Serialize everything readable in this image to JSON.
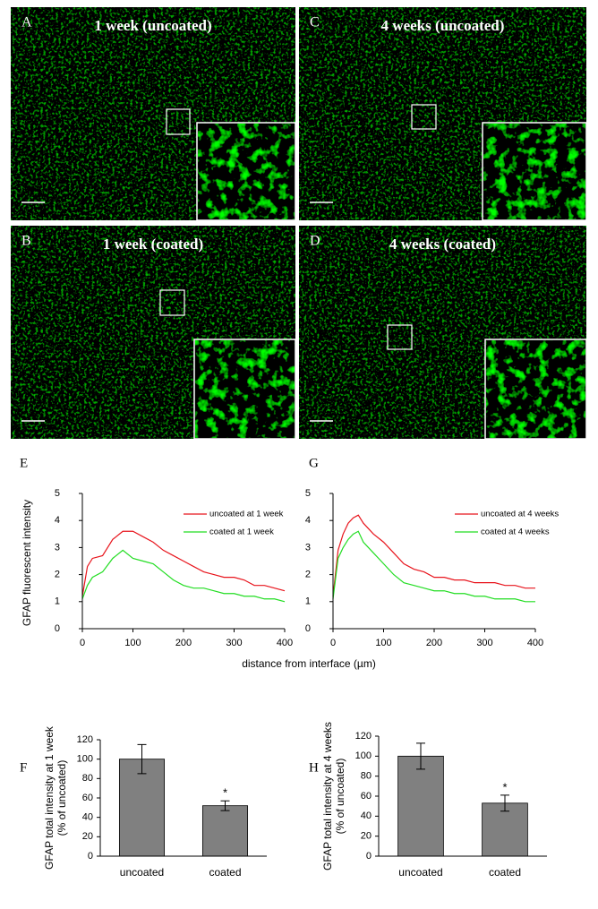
{
  "panels": [
    {
      "letter": "A",
      "title": "1 week (uncoated)"
    },
    {
      "letter": "C",
      "title": "4 weeks (uncoated)"
    },
    {
      "letter": "B",
      "title": "1 week (coated)"
    },
    {
      "letter": "D",
      "title": "4 weeks (coated)"
    }
  ],
  "chart_data": [
    {
      "type": "line",
      "letter": "E",
      "ylabel": "GFAP fluorescent intensity",
      "xlabel": "distance from interface (µm)",
      "x": [
        0,
        10,
        20,
        40,
        60,
        80,
        100,
        120,
        140,
        160,
        180,
        200,
        220,
        240,
        260,
        280,
        300,
        320,
        340,
        360,
        380,
        400
      ],
      "series": [
        {
          "name": "uncoated at 1 week",
          "color": "#e8141c",
          "values": [
            1.2,
            2.3,
            2.6,
            2.7,
            3.3,
            3.6,
            3.6,
            3.4,
            3.2,
            2.9,
            2.7,
            2.5,
            2.3,
            2.1,
            2.0,
            1.9,
            1.9,
            1.8,
            1.6,
            1.6,
            1.5,
            1.4
          ]
        },
        {
          "name": "coated at 1 week",
          "color": "#22dd22",
          "values": [
            1.1,
            1.6,
            1.9,
            2.1,
            2.6,
            2.9,
            2.6,
            2.5,
            2.4,
            2.1,
            1.8,
            1.6,
            1.5,
            1.5,
            1.4,
            1.3,
            1.3,
            1.2,
            1.2,
            1.1,
            1.1,
            1.0
          ]
        }
      ],
      "xlim": [
        0,
        400
      ],
      "xticks": [
        0,
        100,
        200,
        300,
        400
      ],
      "ylim": [
        0,
        5
      ],
      "yticks": [
        0,
        1,
        2,
        3,
        4,
        5
      ]
    },
    {
      "type": "line",
      "letter": "G",
      "x": [
        0,
        10,
        20,
        30,
        40,
        50,
        60,
        80,
        100,
        120,
        140,
        160,
        180,
        200,
        220,
        240,
        260,
        280,
        300,
        320,
        340,
        360,
        380,
        400
      ],
      "series": [
        {
          "name": "uncoated at 4 weeks",
          "color": "#e8141c",
          "values": [
            1.2,
            2.9,
            3.5,
            3.9,
            4.1,
            4.2,
            3.9,
            3.5,
            3.2,
            2.8,
            2.4,
            2.2,
            2.1,
            1.9,
            1.9,
            1.8,
            1.8,
            1.7,
            1.7,
            1.7,
            1.6,
            1.6,
            1.5,
            1.5
          ]
        },
        {
          "name": "coated at 4 weeks",
          "color": "#22dd22",
          "values": [
            1.1,
            2.6,
            3.0,
            3.3,
            3.5,
            3.6,
            3.2,
            2.8,
            2.4,
            2.0,
            1.7,
            1.6,
            1.5,
            1.4,
            1.4,
            1.3,
            1.3,
            1.2,
            1.2,
            1.1,
            1.1,
            1.1,
            1.0,
            1.0
          ]
        }
      ],
      "xlim": [
        0,
        400
      ],
      "xticks": [
        0,
        100,
        200,
        300,
        400
      ],
      "ylim": [
        0,
        5
      ],
      "yticks": [
        0,
        1,
        2,
        3,
        4,
        5
      ]
    },
    {
      "type": "bar",
      "letter": "F",
      "ylabel": [
        "GFAP total intensity at 1 week",
        "(% of uncoated)"
      ],
      "categories": [
        "uncoated",
        "coated"
      ],
      "values": [
        100,
        52
      ],
      "errors": [
        15,
        5
      ],
      "color": "#808080",
      "annotations": [
        null,
        "*"
      ],
      "ylim": [
        0,
        120
      ],
      "yticks": [
        0,
        20,
        40,
        60,
        80,
        100,
        120
      ]
    },
    {
      "type": "bar",
      "letter": "H",
      "ylabel": [
        "GFAP total intensity at 4 weeks",
        "(% of uncoated)"
      ],
      "categories": [
        "uncoated",
        "coated"
      ],
      "values": [
        100,
        53
      ],
      "errors": [
        13,
        8
      ],
      "color": "#808080",
      "annotations": [
        null,
        "*"
      ],
      "ylim": [
        0,
        120
      ],
      "yticks": [
        0,
        20,
        40,
        60,
        80,
        100,
        120
      ]
    }
  ]
}
